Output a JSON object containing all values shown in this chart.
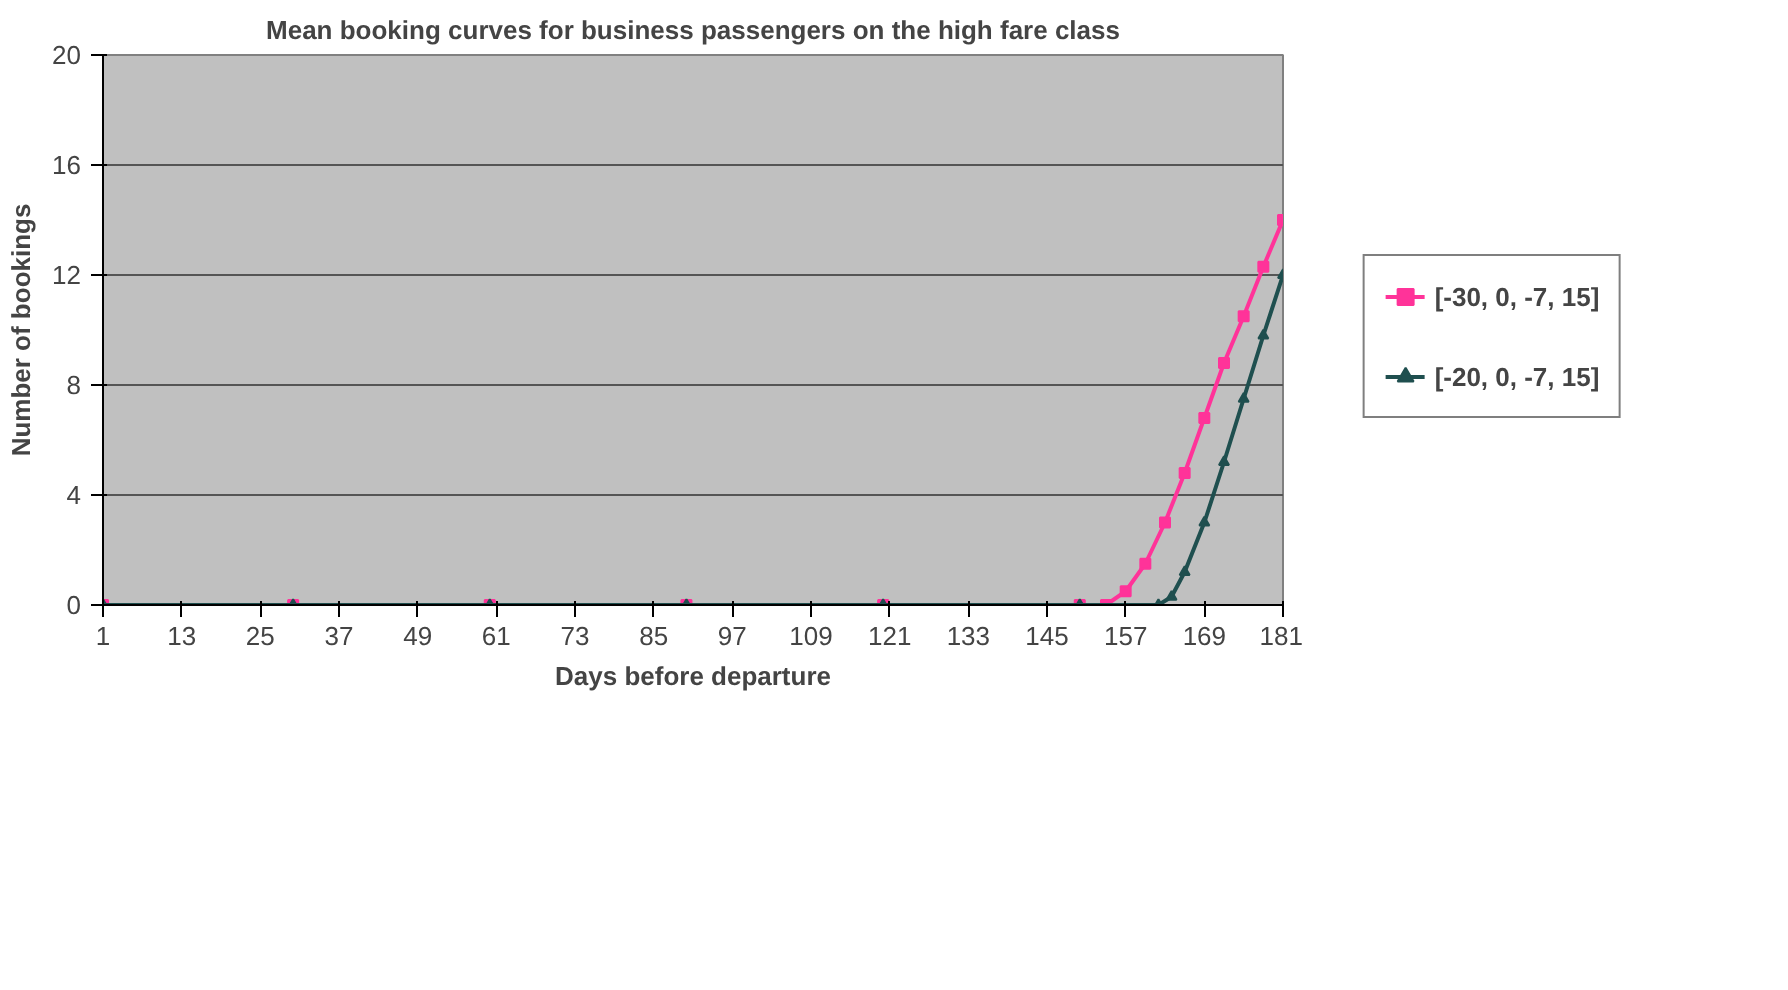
{
  "chart_data": {
    "type": "line",
    "title": "Mean booking curves for business passengers on the high fare class",
    "xlabel": "Days before departure",
    "ylabel": "Number of bookings",
    "xlim": [
      1,
      181
    ],
    "xticks": [
      1,
      13,
      25,
      37,
      49,
      61,
      73,
      85,
      97,
      109,
      121,
      133,
      145,
      157,
      169,
      181
    ],
    "ylim": [
      0,
      20
    ],
    "yticks": [
      0,
      4,
      8,
      12,
      16,
      20
    ],
    "grid": "y",
    "legend": "right",
    "series": [
      {
        "name": "[-30, 0, -7, 15]",
        "color": "#ff3399",
        "marker": "square",
        "x": [
          1,
          30,
          60,
          90,
          120,
          150,
          154,
          157,
          160,
          163,
          166,
          169,
          172,
          175,
          178,
          181
        ],
        "values": [
          0,
          0,
          0,
          0,
          0,
          0,
          0,
          0.5,
          1.5,
          3,
          4.8,
          6.8,
          8.8,
          10.5,
          12.3,
          14
        ]
      },
      {
        "name": "[-20, 0, -7, 15]",
        "color": "#1f4f4f",
        "marker": "triangle",
        "x": [
          1,
          30,
          60,
          90,
          120,
          150,
          162,
          164,
          166,
          169,
          172,
          175,
          178,
          181
        ],
        "values": [
          0,
          0,
          0,
          0,
          0,
          0,
          0,
          0.3,
          1.2,
          3,
          5.2,
          7.5,
          9.8,
          12
        ]
      }
    ]
  }
}
